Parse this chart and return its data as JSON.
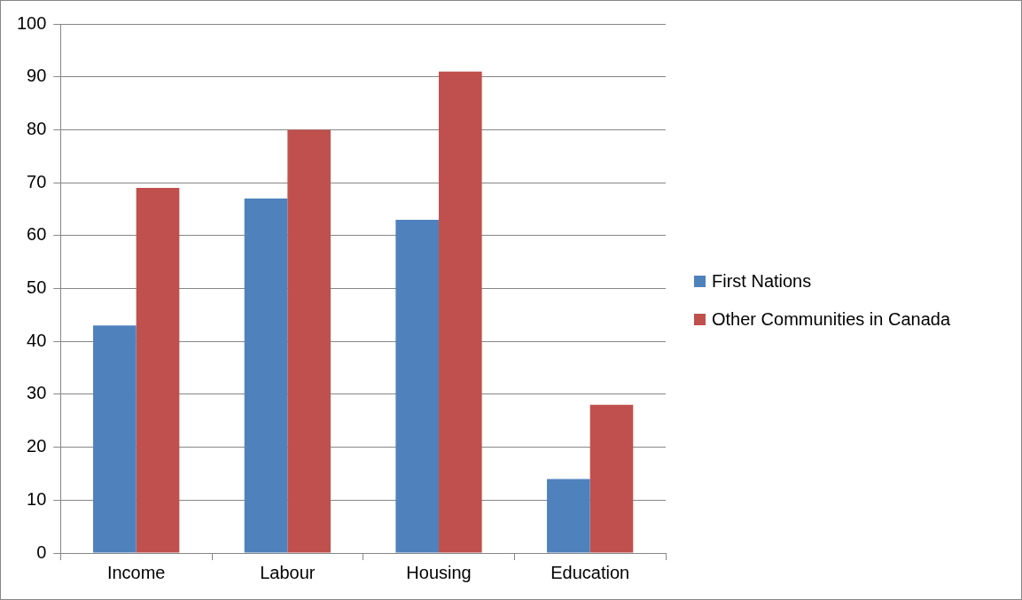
{
  "chart_data": {
    "type": "bar",
    "categories": [
      "Income",
      "Labour",
      "Housing",
      "Education"
    ],
    "series": [
      {
        "name": "First Nations",
        "color": "#4f81bd",
        "values": [
          43,
          67,
          63,
          14
        ]
      },
      {
        "name": "Other Communities in Canada",
        "color": "#c0504d",
        "values": [
          69,
          80,
          91,
          28
        ]
      }
    ],
    "ylim": [
      0,
      100
    ],
    "yticks": [
      0,
      10,
      20,
      30,
      40,
      50,
      60,
      70,
      80,
      90,
      100
    ],
    "grid": "y",
    "legend": "right"
  }
}
